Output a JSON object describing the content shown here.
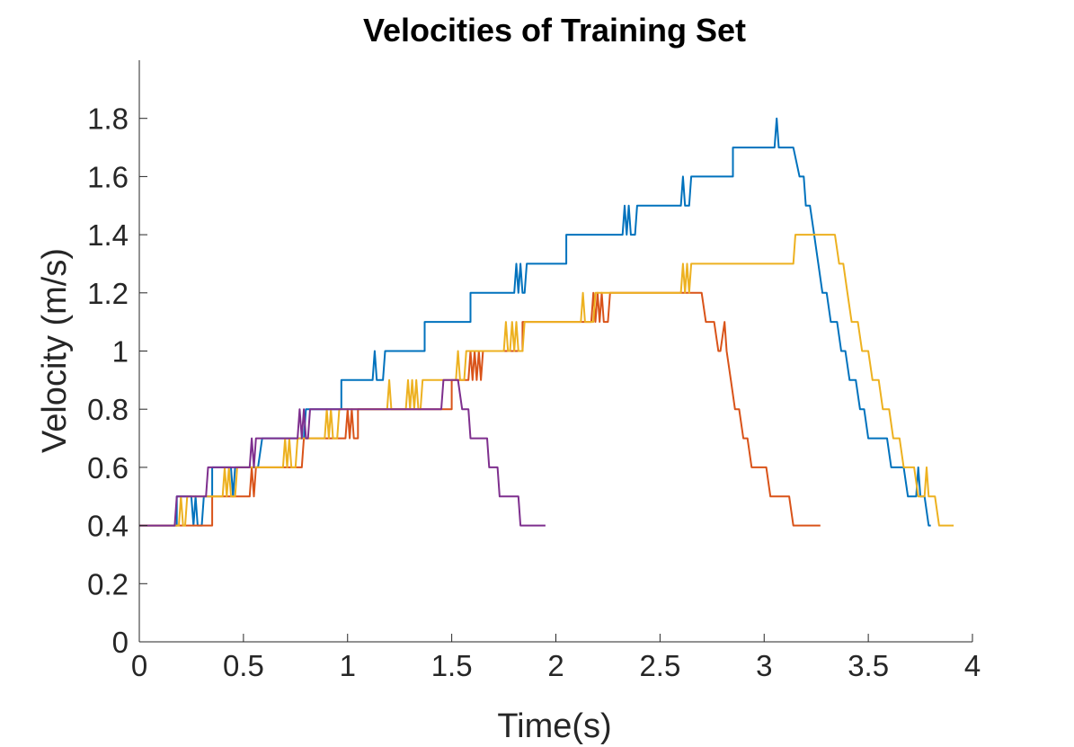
{
  "chart_data": {
    "type": "line",
    "title": "Velocities of Training Set",
    "xlabel": "Time(s)",
    "ylabel": "Velocity (m/s)",
    "xlim": [
      0,
      4
    ],
    "ylim": [
      0,
      2
    ],
    "xticks": [
      0,
      0.5,
      1,
      1.5,
      2,
      2.5,
      3,
      3.5,
      4
    ],
    "xtick_labels": [
      "0",
      "0.5",
      "1",
      "1.5",
      "2",
      "2.5",
      "3",
      "3.5",
      "4"
    ],
    "yticks": [
      0,
      0.2,
      0.4,
      0.6,
      0.8,
      1,
      1.2,
      1.4,
      1.6,
      1.8
    ],
    "ytick_labels": [
      "0",
      "0.2",
      "0.4",
      "0.6",
      "0.8",
      "1",
      "1.2",
      "1.4",
      "1.6",
      "1.8"
    ],
    "grid": false,
    "legend": "none",
    "series": [
      {
        "color": "#0072BD",
        "points": [
          [
            0,
            0.4
          ],
          [
            0.18,
            0.4
          ],
          [
            0.18,
            0.5
          ],
          [
            0.25,
            0.5
          ],
          [
            0.26,
            0.4
          ],
          [
            0.27,
            0.5
          ],
          [
            0.28,
            0.4
          ],
          [
            0.3,
            0.4
          ],
          [
            0.31,
            0.5
          ],
          [
            0.35,
            0.5
          ],
          [
            0.35,
            0.6
          ],
          [
            0.44,
            0.6
          ],
          [
            0.45,
            0.5
          ],
          [
            0.46,
            0.6
          ],
          [
            0.57,
            0.6
          ],
          [
            0.59,
            0.7
          ],
          [
            0.79,
            0.7
          ],
          [
            0.8,
            0.8
          ],
          [
            0.97,
            0.8
          ],
          [
            0.97,
            0.9
          ],
          [
            1.12,
            0.9
          ],
          [
            1.13,
            1.0
          ],
          [
            1.14,
            0.9
          ],
          [
            1.17,
            0.9
          ],
          [
            1.18,
            1.0
          ],
          [
            1.37,
            1.0
          ],
          [
            1.37,
            1.1
          ],
          [
            1.59,
            1.1
          ],
          [
            1.59,
            1.2
          ],
          [
            1.8,
            1.2
          ],
          [
            1.81,
            1.3
          ],
          [
            1.82,
            1.2
          ],
          [
            1.83,
            1.3
          ],
          [
            1.84,
            1.2
          ],
          [
            1.85,
            1.2
          ],
          [
            1.86,
            1.3
          ],
          [
            2.05,
            1.3
          ],
          [
            2.05,
            1.4
          ],
          [
            2.32,
            1.4
          ],
          [
            2.33,
            1.5
          ],
          [
            2.34,
            1.4
          ],
          [
            2.35,
            1.5
          ],
          [
            2.36,
            1.4
          ],
          [
            2.38,
            1.4
          ],
          [
            2.39,
            1.5
          ],
          [
            2.6,
            1.5
          ],
          [
            2.61,
            1.6
          ],
          [
            2.62,
            1.5
          ],
          [
            2.64,
            1.5
          ],
          [
            2.65,
            1.6
          ],
          [
            2.85,
            1.6
          ],
          [
            2.85,
            1.7
          ],
          [
            3.05,
            1.7
          ],
          [
            3.06,
            1.8
          ],
          [
            3.07,
            1.7
          ],
          [
            3.14,
            1.7
          ],
          [
            3.17,
            1.6
          ],
          [
            3.19,
            1.6
          ],
          [
            3.2,
            1.5
          ],
          [
            3.22,
            1.5
          ],
          [
            3.24,
            1.4
          ],
          [
            3.26,
            1.3
          ],
          [
            3.28,
            1.2
          ],
          [
            3.3,
            1.2
          ],
          [
            3.32,
            1.1
          ],
          [
            3.35,
            1.1
          ],
          [
            3.37,
            1.0
          ],
          [
            3.39,
            1.0
          ],
          [
            3.41,
            0.9
          ],
          [
            3.44,
            0.9
          ],
          [
            3.46,
            0.8
          ],
          [
            3.48,
            0.8
          ],
          [
            3.5,
            0.7
          ],
          [
            3.59,
            0.7
          ],
          [
            3.61,
            0.6
          ],
          [
            3.67,
            0.6
          ],
          [
            3.69,
            0.5
          ],
          [
            3.73,
            0.5
          ],
          [
            3.74,
            0.6
          ],
          [
            3.75,
            0.5
          ],
          [
            3.77,
            0.5
          ],
          [
            3.79,
            0.4
          ],
          [
            3.8,
            0.4
          ]
        ]
      },
      {
        "color": "#D95319",
        "points": [
          [
            0,
            0.4
          ],
          [
            0.35,
            0.4
          ],
          [
            0.35,
            0.5
          ],
          [
            0.53,
            0.5
          ],
          [
            0.54,
            0.6
          ],
          [
            0.55,
            0.5
          ],
          [
            0.56,
            0.6
          ],
          [
            0.78,
            0.6
          ],
          [
            0.79,
            0.7
          ],
          [
            0.99,
            0.7
          ],
          [
            1.0,
            0.8
          ],
          [
            1.01,
            0.7
          ],
          [
            1.02,
            0.8
          ],
          [
            1.03,
            0.7
          ],
          [
            1.05,
            0.7
          ],
          [
            1.05,
            0.8
          ],
          [
            1.5,
            0.8
          ],
          [
            1.5,
            0.9
          ],
          [
            1.58,
            0.9
          ],
          [
            1.59,
            1.0
          ],
          [
            1.6,
            0.9
          ],
          [
            1.61,
            1.0
          ],
          [
            1.62,
            0.9
          ],
          [
            1.63,
            1.0
          ],
          [
            1.64,
            0.9
          ],
          [
            1.65,
            1.0
          ],
          [
            1.84,
            1.0
          ],
          [
            1.84,
            1.1
          ],
          [
            2.17,
            1.1
          ],
          [
            2.18,
            1.2
          ],
          [
            2.19,
            1.1
          ],
          [
            2.2,
            1.2
          ],
          [
            2.21,
            1.1
          ],
          [
            2.22,
            1.2
          ],
          [
            2.23,
            1.1
          ],
          [
            2.25,
            1.1
          ],
          [
            2.26,
            1.2
          ],
          [
            2.7,
            1.2
          ],
          [
            2.72,
            1.1
          ],
          [
            2.76,
            1.1
          ],
          [
            2.78,
            1.0
          ],
          [
            2.79,
            1.0
          ],
          [
            2.81,
            1.1
          ],
          [
            2.82,
            1.0
          ],
          [
            2.84,
            0.9
          ],
          [
            2.86,
            0.8
          ],
          [
            2.88,
            0.8
          ],
          [
            2.9,
            0.7
          ],
          [
            2.92,
            0.7
          ],
          [
            2.94,
            0.6
          ],
          [
            3.01,
            0.6
          ],
          [
            3.03,
            0.5
          ],
          [
            3.12,
            0.5
          ],
          [
            3.14,
            0.4
          ],
          [
            3.27,
            0.4
          ]
        ]
      },
      {
        "color": "#EDB120",
        "points": [
          [
            0,
            0.4
          ],
          [
            0.19,
            0.4
          ],
          [
            0.2,
            0.5
          ],
          [
            0.21,
            0.4
          ],
          [
            0.22,
            0.4
          ],
          [
            0.23,
            0.5
          ],
          [
            0.4,
            0.5
          ],
          [
            0.41,
            0.6
          ],
          [
            0.42,
            0.5
          ],
          [
            0.43,
            0.6
          ],
          [
            0.44,
            0.5
          ],
          [
            0.46,
            0.5
          ],
          [
            0.47,
            0.6
          ],
          [
            0.69,
            0.6
          ],
          [
            0.7,
            0.7
          ],
          [
            0.71,
            0.6
          ],
          [
            0.72,
            0.7
          ],
          [
            0.73,
            0.6
          ],
          [
            0.75,
            0.6
          ],
          [
            0.76,
            0.7
          ],
          [
            0.89,
            0.7
          ],
          [
            0.9,
            0.8
          ],
          [
            0.91,
            0.7
          ],
          [
            0.92,
            0.8
          ],
          [
            0.93,
            0.7
          ],
          [
            0.95,
            0.7
          ],
          [
            0.96,
            0.8
          ],
          [
            1.19,
            0.8
          ],
          [
            1.2,
            0.9
          ],
          [
            1.21,
            0.8
          ],
          [
            1.28,
            0.8
          ],
          [
            1.29,
            0.9
          ],
          [
            1.3,
            0.8
          ],
          [
            1.31,
            0.9
          ],
          [
            1.32,
            0.8
          ],
          [
            1.33,
            0.9
          ],
          [
            1.34,
            0.8
          ],
          [
            1.35,
            0.8
          ],
          [
            1.36,
            0.9
          ],
          [
            1.52,
            0.9
          ],
          [
            1.53,
            1.0
          ],
          [
            1.54,
            0.9
          ],
          [
            1.56,
            0.9
          ],
          [
            1.57,
            1.0
          ],
          [
            1.75,
            1.0
          ],
          [
            1.76,
            1.1
          ],
          [
            1.77,
            1.0
          ],
          [
            1.78,
            1.0
          ],
          [
            1.79,
            1.1
          ],
          [
            1.8,
            1.0
          ],
          [
            1.81,
            1.1
          ],
          [
            1.82,
            1.0
          ],
          [
            1.84,
            1.0
          ],
          [
            1.85,
            1.1
          ],
          [
            2.12,
            1.1
          ],
          [
            2.13,
            1.2
          ],
          [
            2.14,
            1.1
          ],
          [
            2.18,
            1.1
          ],
          [
            2.19,
            1.2
          ],
          [
            2.6,
            1.2
          ],
          [
            2.61,
            1.3
          ],
          [
            2.62,
            1.2
          ],
          [
            2.63,
            1.3
          ],
          [
            2.64,
            1.2
          ],
          [
            2.65,
            1.3
          ],
          [
            3.14,
            1.3
          ],
          [
            3.15,
            1.4
          ],
          [
            3.34,
            1.4
          ],
          [
            3.36,
            1.3
          ],
          [
            3.38,
            1.3
          ],
          [
            3.4,
            1.2
          ],
          [
            3.42,
            1.1
          ],
          [
            3.45,
            1.1
          ],
          [
            3.47,
            1.0
          ],
          [
            3.5,
            1.0
          ],
          [
            3.52,
            0.9
          ],
          [
            3.55,
            0.9
          ],
          [
            3.57,
            0.8
          ],
          [
            3.6,
            0.8
          ],
          [
            3.62,
            0.7
          ],
          [
            3.65,
            0.7
          ],
          [
            3.67,
            0.6
          ],
          [
            3.72,
            0.6
          ],
          [
            3.74,
            0.5
          ],
          [
            3.77,
            0.5
          ],
          [
            3.78,
            0.6
          ],
          [
            3.79,
            0.5
          ],
          [
            3.82,
            0.5
          ],
          [
            3.84,
            0.4
          ],
          [
            3.91,
            0.4
          ]
        ]
      },
      {
        "color": "#7E2F8E",
        "points": [
          [
            0,
            0.4
          ],
          [
            0.17,
            0.4
          ],
          [
            0.18,
            0.5
          ],
          [
            0.32,
            0.5
          ],
          [
            0.33,
            0.6
          ],
          [
            0.53,
            0.6
          ],
          [
            0.54,
            0.7
          ],
          [
            0.55,
            0.6
          ],
          [
            0.56,
            0.7
          ],
          [
            0.76,
            0.7
          ],
          [
            0.77,
            0.8
          ],
          [
            0.78,
            0.7
          ],
          [
            0.79,
            0.8
          ],
          [
            0.8,
            0.7
          ],
          [
            0.81,
            0.7
          ],
          [
            0.82,
            0.8
          ],
          [
            1.45,
            0.8
          ],
          [
            1.46,
            0.9
          ],
          [
            1.53,
            0.9
          ],
          [
            1.55,
            0.8
          ],
          [
            1.58,
            0.8
          ],
          [
            1.59,
            0.7
          ],
          [
            1.67,
            0.7
          ],
          [
            1.68,
            0.6
          ],
          [
            1.72,
            0.6
          ],
          [
            1.73,
            0.5
          ],
          [
            1.82,
            0.5
          ],
          [
            1.83,
            0.4
          ],
          [
            1.95,
            0.4
          ]
        ]
      }
    ]
  }
}
